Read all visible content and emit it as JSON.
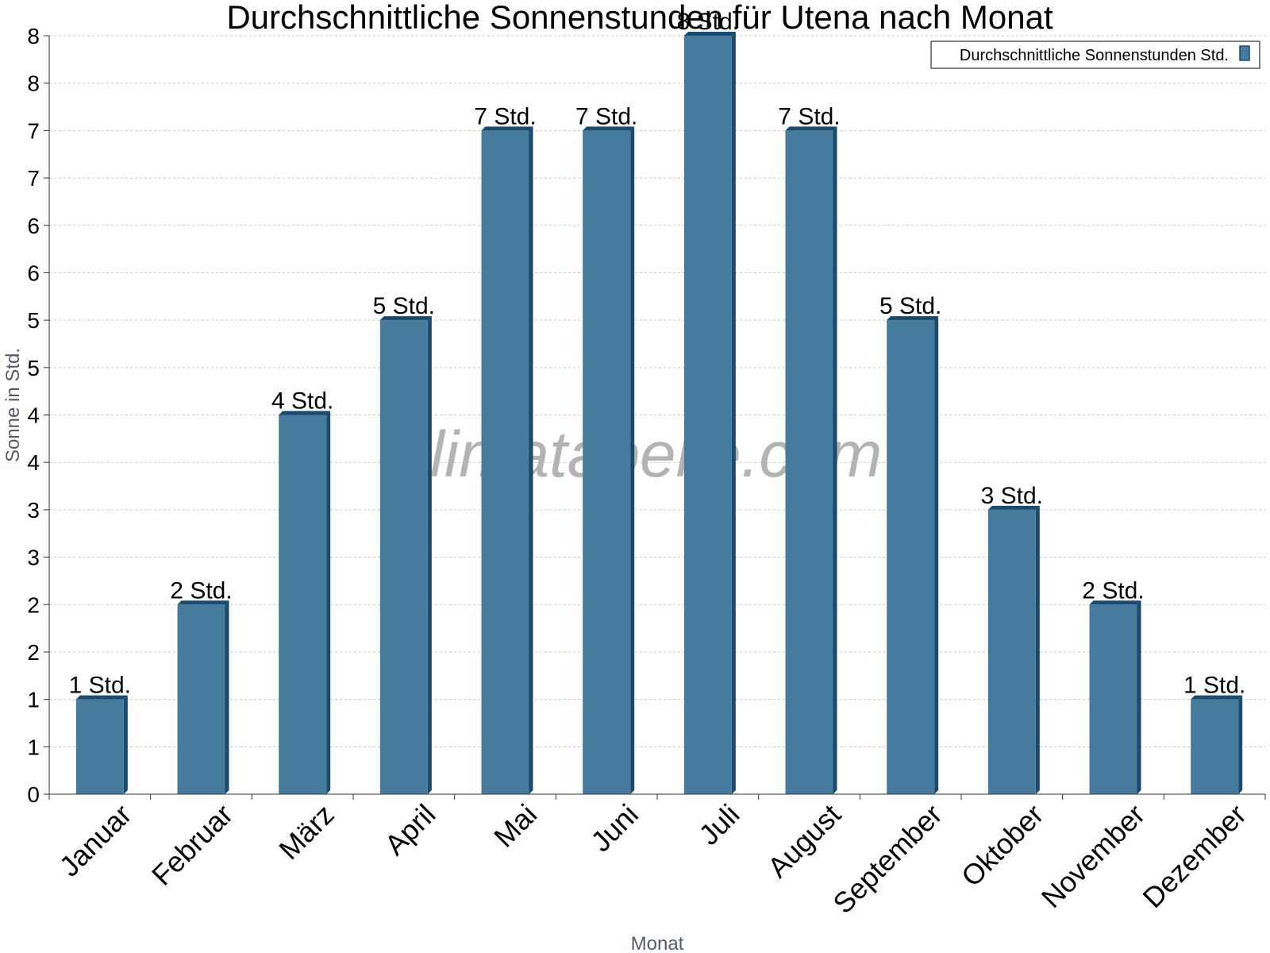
{
  "chart_data": {
    "type": "bar",
    "title": "Durchschnittliche Sonnenstunden für Utena nach Monat",
    "xlabel": "Monat",
    "ylabel": "Sonne in Std.",
    "categories": [
      "Januar",
      "Februar",
      "März",
      "April",
      "Mai",
      "Juni",
      "Juli",
      "August",
      "September",
      "Oktober",
      "November",
      "Dezember"
    ],
    "series": [
      {
        "name": "Durchschnittliche Sonnenstunden Std.",
        "values": [
          1,
          2,
          4,
          5,
          7,
          7,
          8,
          7,
          5,
          3,
          2,
          1
        ],
        "labels": [
          "1 Std.",
          "2 Std.",
          "4 Std.",
          "5 Std.",
          "7 Std.",
          "7 Std.",
          "8 Std.",
          "7 Std.",
          "5 Std.",
          "3 Std.",
          "2 Std.",
          "1 Std."
        ]
      }
    ],
    "ylim": [
      0,
      8
    ],
    "yticks": [
      0,
      0.5,
      1,
      1.5,
      2,
      2.5,
      3,
      3.5,
      4,
      4.5,
      5,
      5.5,
      6,
      6.5,
      7,
      7.5,
      8
    ],
    "ytick_labels": [
      "0",
      "1",
      "1",
      "2",
      "2",
      "3",
      "3",
      "4",
      "4",
      "5",
      "5",
      "6",
      "6",
      "7",
      "7",
      "8",
      "8"
    ],
    "grid": true,
    "legend": "top-right",
    "watermark": "klimatabelle.com",
    "colors": {
      "bar": "#467b9e",
      "bar_edge": "#1a4a6e",
      "grid": "#c8c8c8",
      "axis_title": "#555b66",
      "watermark": "#b3b3b3"
    }
  }
}
